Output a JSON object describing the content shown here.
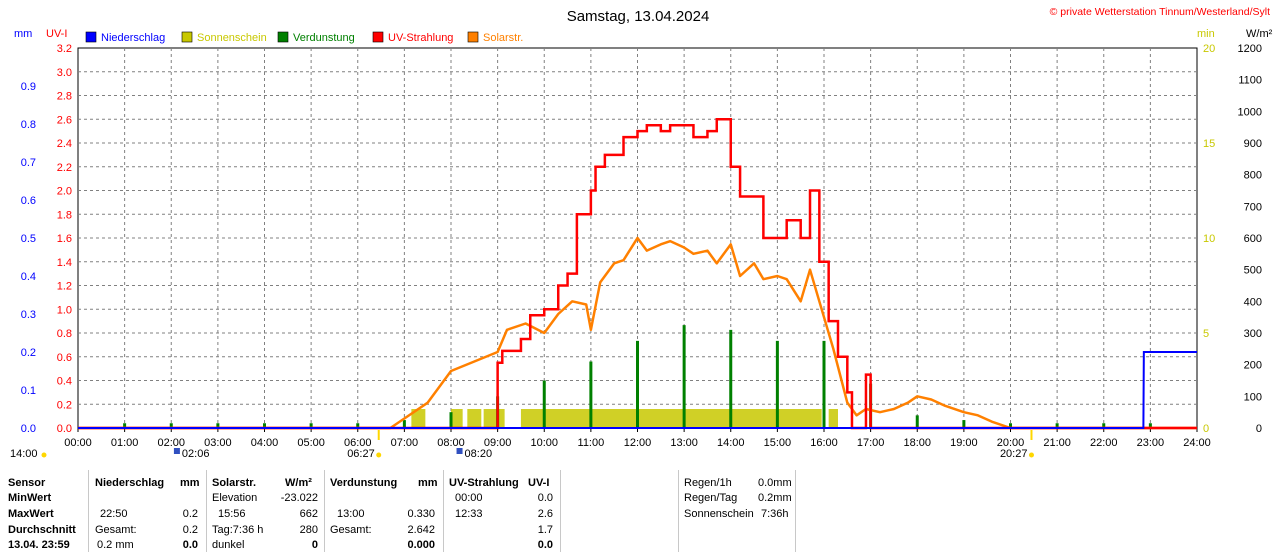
{
  "header": {
    "title": "Samstag, 13.04.2024",
    "credit": "© private Wetterstation Tinnum/Westerland/Sylt",
    "unit_mm": "mm",
    "unit_uvi": "UV-I",
    "unit_min": "min",
    "unit_wm2": "W/m²"
  },
  "colors": {
    "precip": "#0000ff",
    "sunshine": "#c8c800",
    "evap": "#008000",
    "uv": "#ff0000",
    "solar": "#ff8000",
    "grid": "#808080"
  },
  "chart_data": {
    "type": "line",
    "legend": [
      "Niederschlag",
      "Sonnenschein",
      "Verdunstung",
      "UV-Strahlung",
      "Solarstr."
    ],
    "x_ticks": [
      "00:00",
      "01:00",
      "02:00",
      "03:00",
      "04:00",
      "05:00",
      "06:00",
      "07:00",
      "08:00",
      "09:00",
      "10:00",
      "11:00",
      "12:00",
      "13:00",
      "14:00",
      "15:00",
      "16:00",
      "17:00",
      "18:00",
      "19:00",
      "20:00",
      "21:00",
      "22:00",
      "23:00",
      "24:00"
    ],
    "axes": {
      "precip_mm": {
        "ticks": [
          "0.0",
          "0.1",
          "0.2",
          "0.3",
          "0.4",
          "0.5",
          "0.6",
          "0.7",
          "0.8",
          "0.9"
        ],
        "range": [
          0,
          1.0
        ]
      },
      "uv_index": {
        "ticks": [
          "0.0",
          "0.2",
          "0.4",
          "0.6",
          "0.8",
          "1.0",
          "1.2",
          "1.4",
          "1.6",
          "1.8",
          "2.0",
          "2.2",
          "2.4",
          "2.6",
          "2.8",
          "3.0",
          "3.2"
        ],
        "range": [
          0,
          3.2
        ]
      },
      "sunshine_min": {
        "ticks": [
          "0",
          "5",
          "10",
          "15",
          "20"
        ],
        "range": [
          0,
          20
        ]
      },
      "solar_wm2": {
        "ticks": [
          "0",
          "100",
          "200",
          "300",
          "400",
          "500",
          "600",
          "700",
          "800",
          "900",
          "1000",
          "1100",
          "1200"
        ],
        "range": [
          0,
          1200
        ]
      }
    },
    "series": [
      {
        "name": "UV-Strahlung",
        "x": [
          0,
          6.5,
          9.0,
          9.1,
          9.5,
          9.7,
          10.0,
          10.3,
          10.5,
          10.7,
          11.0,
          11.1,
          11.3,
          11.5,
          11.7,
          12.0,
          12.2,
          12.5,
          12.7,
          13.0,
          13.2,
          13.5,
          13.7,
          14.0,
          14.2,
          14.5,
          14.7,
          15.0,
          15.2,
          15.5,
          15.7,
          15.9,
          16.1,
          16.3,
          16.5,
          16.6,
          16.8,
          16.9,
          17.0,
          24
        ],
        "y": [
          0,
          0,
          0.55,
          0.65,
          0.75,
          0.95,
          1.0,
          1.2,
          1.3,
          1.8,
          2.0,
          2.2,
          2.3,
          2.3,
          2.45,
          2.5,
          2.55,
          2.5,
          2.55,
          2.55,
          2.45,
          2.5,
          2.6,
          2.2,
          1.95,
          1.95,
          1.6,
          1.6,
          1.75,
          1.6,
          2.0,
          1.4,
          0.9,
          0.6,
          0.3,
          0.0,
          0.0,
          0.45,
          0.0,
          0
        ]
      },
      {
        "name": "Solarstr.",
        "x": [
          0,
          6.7,
          7.0,
          7.5,
          8.0,
          8.5,
          9.0,
          9.2,
          9.6,
          10.0,
          10.3,
          10.6,
          10.9,
          11.0,
          11.2,
          11.5,
          11.7,
          12.0,
          12.2,
          12.5,
          12.7,
          13.0,
          13.2,
          13.5,
          13.7,
          14.0,
          14.2,
          14.5,
          14.7,
          15.0,
          15.2,
          15.5,
          15.7,
          16.0,
          16.2,
          16.5,
          16.7,
          16.9,
          17.2,
          17.5,
          17.8,
          18.0,
          18.3,
          18.6,
          19.0,
          19.3,
          19.6,
          20.0,
          24
        ],
        "y": [
          0,
          0,
          30,
          80,
          180,
          210,
          240,
          310,
          330,
          300,
          360,
          400,
          390,
          310,
          460,
          520,
          530,
          600,
          560,
          580,
          590,
          570,
          550,
          560,
          520,
          580,
          480,
          520,
          470,
          480,
          470,
          400,
          500,
          350,
          250,
          80,
          40,
          60,
          50,
          60,
          80,
          100,
          90,
          70,
          50,
          40,
          20,
          0,
          0
        ]
      },
      {
        "name": "Niederschlag",
        "x": [
          0,
          22.85,
          22.86,
          24
        ],
        "y": [
          0,
          0,
          0.2,
          0.2
        ]
      },
      {
        "name": "Verdunstung",
        "x": [
          1,
          2,
          3,
          4,
          5,
          6,
          7,
          8,
          9,
          10,
          11,
          12,
          13,
          14,
          15,
          16,
          17,
          18,
          19,
          20,
          21,
          22,
          23
        ],
        "y": [
          0.3,
          0.3,
          0.3,
          0.3,
          0.3,
          0.3,
          0.5,
          1.0,
          2.0,
          3.0,
          4.2,
          5.5,
          6.5,
          6.2,
          5.5,
          5.5,
          2.8,
          0.8,
          0.5,
          0.3,
          0.3,
          0.3,
          0.3
        ]
      },
      {
        "name": "Sonnenschein",
        "segments": [
          [
            7.15,
            7.45
          ],
          [
            8.0,
            8.25
          ],
          [
            8.35,
            8.65
          ],
          [
            8.7,
            9.15
          ],
          [
            9.5,
            15.95
          ],
          [
            16.1,
            16.3
          ]
        ],
        "height_min": 1.0
      }
    ],
    "markers": {
      "sunrise": "06:27",
      "sunset": "20:27",
      "moon_a": "02:06",
      "moon_b": "08:20",
      "left_label": "14:00"
    }
  },
  "table": {
    "headers": {
      "sensor": "Sensor",
      "precip": "Niederschlag",
      "precip_unit": "mm",
      "solar": "Solarstr.",
      "solar_unit": "W/m²",
      "evap": "Verdunstung",
      "evap_unit": "mm",
      "uv": "UV-Strahlung",
      "uv_unit": "UV-I"
    },
    "row_labels": [
      "MinWert",
      "MaxWert",
      "Durchschnitt",
      "13.04. 23:59"
    ],
    "precip": {
      "max_time": "22:50",
      "max_val": "0.2",
      "total_label": "Gesamt:",
      "total_val": "0.2",
      "now_val": "0.2 mm",
      "now_bold": "0.0"
    },
    "solar": {
      "elev_label": "Elevation",
      "elev_val": "-23.022",
      "max_time": "15:56",
      "max_val": "662",
      "day_label": "Tag:7:36 h",
      "day_val": "280",
      "now_label": "dunkel",
      "now_val": "0"
    },
    "evap": {
      "max_time": "13:00",
      "max_val": "0.330",
      "total_label": "Gesamt:",
      "total_val": "2.642",
      "now_val": "0.000"
    },
    "uv": {
      "min_time": "00:00",
      "min_val": "0.0",
      "max_time": "12:33",
      "max_val": "2.6",
      "avg_val": "1.7",
      "now_val": "0.0"
    },
    "summary": [
      {
        "label": "Regen/1h",
        "value": "0.0mm"
      },
      {
        "label": "Regen/Tag",
        "value": "0.2mm"
      },
      {
        "label": "Sonnenschein",
        "value": "7:36h"
      }
    ]
  }
}
